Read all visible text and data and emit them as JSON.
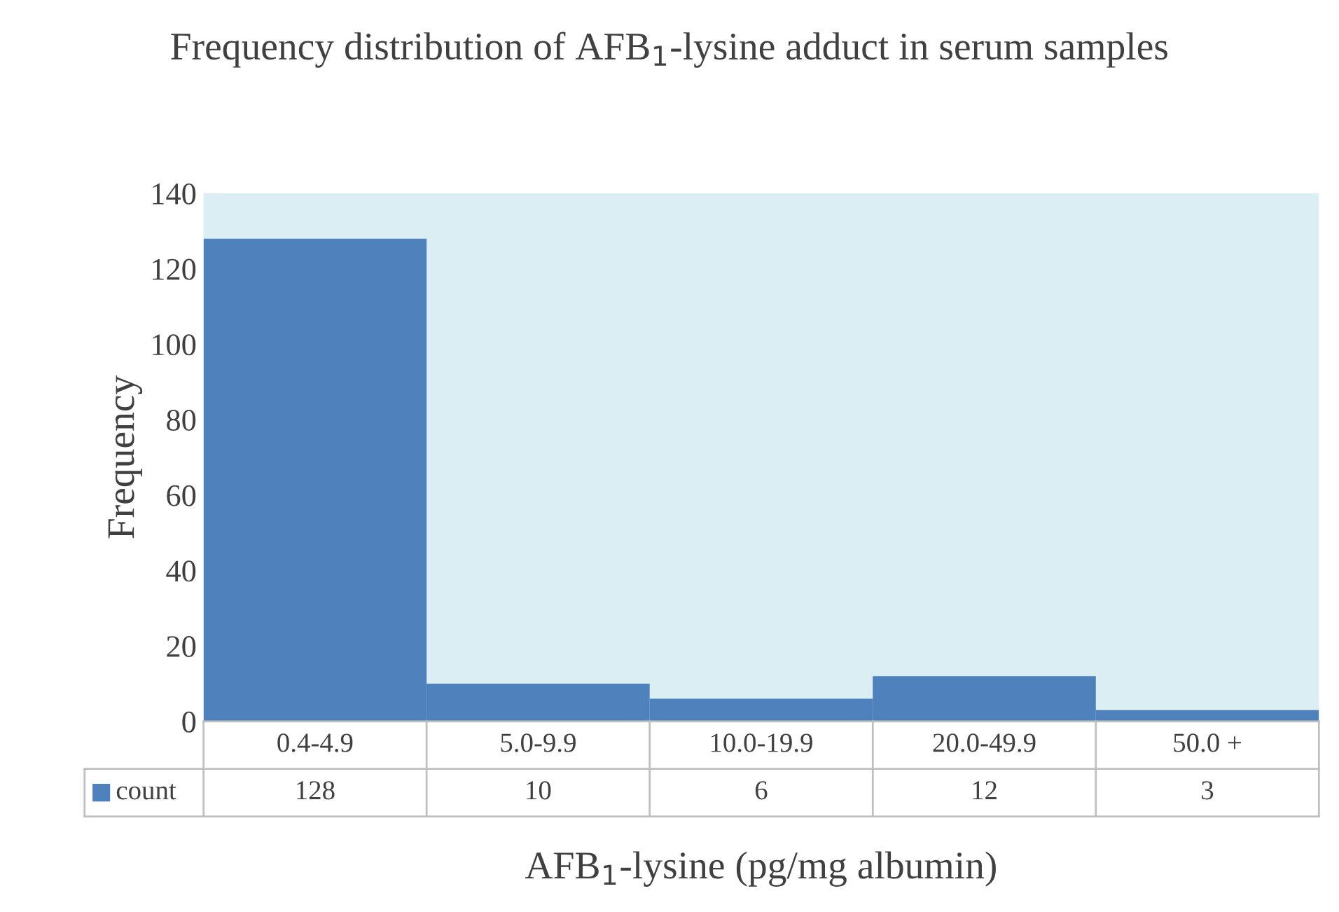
{
  "chart_data": {
    "type": "bar",
    "title": "Frequency distribution of AFB$_{1}$-lysine adduct in serum samples",
    "xlabel": "AFB$_{1}$-lysine (pg/mg albumin)",
    "ylabel": "Frequency",
    "categories": [
      "0.4-4.9",
      "5.0-9.9",
      "10.0-19.9",
      "20.0-49.9",
      "50.0 +"
    ],
    "series": [
      {
        "name": "count",
        "color": "#4f81bd",
        "values": [
          128,
          10,
          6,
          12,
          3
        ]
      }
    ],
    "ylim": [
      0,
      140
    ],
    "yticks": [
      0,
      20,
      40,
      60,
      80,
      100,
      120,
      140
    ],
    "grid": false,
    "legend": "bottom",
    "data_labels": true
  }
}
